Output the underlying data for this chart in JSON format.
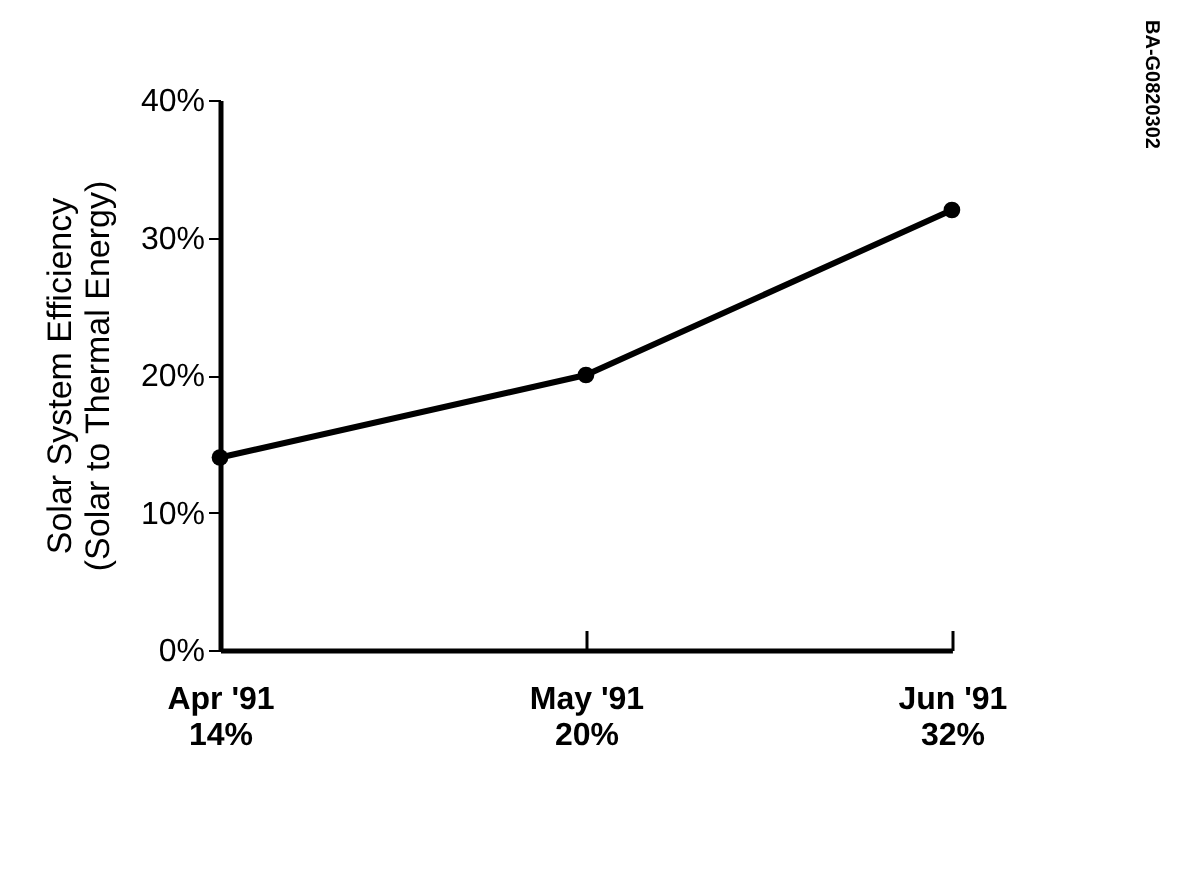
{
  "chart_data": {
    "type": "line",
    "ylabel": "Solar System Efficiency\n(Solar to Thermal Energy)",
    "categories": [
      "Apr '91",
      "May '91",
      "Jun '91"
    ],
    "series": [
      {
        "color": "#000000",
        "values": [
          14,
          20,
          32
        ]
      }
    ],
    "value_labels": [
      "14%",
      "20%",
      "32%"
    ],
    "ylim": [
      0,
      40
    ],
    "yticks": [
      {
        "value": 0,
        "label": "0%"
      },
      {
        "value": 10,
        "label": "10%"
      },
      {
        "value": 20,
        "label": "20%"
      },
      {
        "value": 30,
        "label": "30%"
      },
      {
        "value": 40,
        "label": "40%"
      }
    ],
    "marker": "circle",
    "line_style": "solid",
    "grid": false,
    "annotations": [
      "BA-G0820302"
    ]
  }
}
